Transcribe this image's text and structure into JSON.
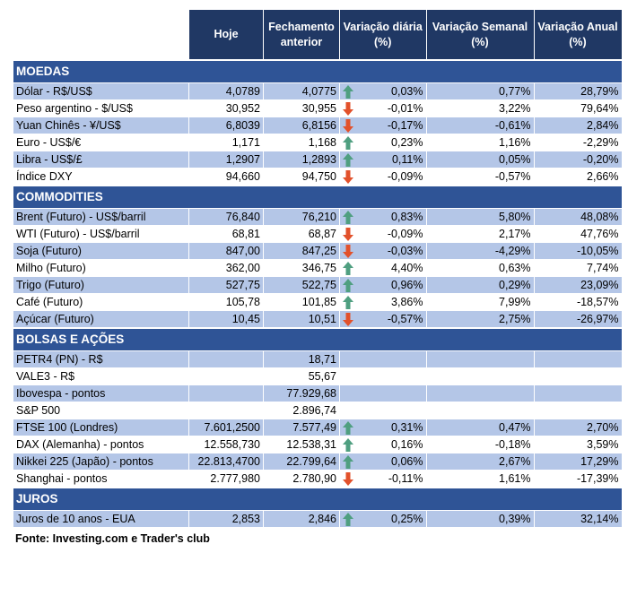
{
  "headers": {
    "hoje": "Hoje",
    "fech": "Fechamento anterior",
    "diaria": "Variação diária (%)",
    "semanal": "Variação Semanal (%)",
    "anual": "Variação Anual (%)"
  },
  "colors": {
    "header": "#203864",
    "section": "#2F5496",
    "row_alt": "#B4C6E7",
    "up": "#4f9f80",
    "down": "#e2512b"
  },
  "sections": [
    {
      "title": "MOEDAS",
      "rows": [
        {
          "name": "Dólar - R$/US$",
          "hoje": "4,0789",
          "fech": "4,0775",
          "dir": "up",
          "d": "0,03%",
          "s": "0,77%",
          "a": "28,79%"
        },
        {
          "name": "Peso argentino - $/US$",
          "hoje": "30,952",
          "fech": "30,955",
          "dir": "down",
          "d": "-0,01%",
          "s": "3,22%",
          "a": "79,64%"
        },
        {
          "name": "Yuan Chinês - ¥/US$",
          "hoje": "6,8039",
          "fech": "6,8156",
          "dir": "down",
          "d": "-0,17%",
          "s": "-0,61%",
          "a": "2,84%"
        },
        {
          "name": "Euro - US$/€",
          "hoje": "1,171",
          "fech": "1,168",
          "dir": "up",
          "d": "0,23%",
          "s": "1,16%",
          "a": "-2,29%"
        },
        {
          "name": "Libra - US$/£",
          "hoje": "1,2907",
          "fech": "1,2893",
          "dir": "up",
          "d": "0,11%",
          "s": "0,05%",
          "a": "-0,20%"
        },
        {
          "name": "Índice DXY",
          "hoje": "94,660",
          "fech": "94,750",
          "dir": "down",
          "d": "-0,09%",
          "s": "-0,57%",
          "a": "2,66%"
        }
      ]
    },
    {
      "title": "COMMODITIES",
      "rows": [
        {
          "name": "Brent (Futuro) - US$/barril",
          "hoje": "76,840",
          "fech": "76,210",
          "dir": "up",
          "d": "0,83%",
          "s": "5,80%",
          "a": "48,08%"
        },
        {
          "name": "WTI (Futuro) - US$/barril",
          "hoje": "68,81",
          "fech": "68,87",
          "dir": "down",
          "d": "-0,09%",
          "s": "2,17%",
          "a": "47,76%"
        },
        {
          "name": "Soja (Futuro)",
          "hoje": "847,00",
          "fech": "847,25",
          "dir": "down",
          "d": "-0,03%",
          "s": "-4,29%",
          "a": "-10,05%"
        },
        {
          "name": "Milho (Futuro)",
          "hoje": "362,00",
          "fech": "346,75",
          "dir": "up",
          "d": "4,40%",
          "s": "0,63%",
          "a": "7,74%"
        },
        {
          "name": "Trigo (Futuro)",
          "hoje": "527,75",
          "fech": "522,75",
          "dir": "up",
          "d": "0,96%",
          "s": "0,29%",
          "a": "23,09%"
        },
        {
          "name": "Café (Futuro)",
          "hoje": "105,78",
          "fech": "101,85",
          "dir": "up",
          "d": "3,86%",
          "s": "7,99%",
          "a": "-18,57%"
        },
        {
          "name": "Açúcar (Futuro)",
          "hoje": "10,45",
          "fech": "10,51",
          "dir": "down",
          "d": "-0,57%",
          "s": "2,75%",
          "a": "-26,97%"
        }
      ]
    },
    {
      "title": "BOLSAS E AÇÕES",
      "rows": [
        {
          "name": "PETR4 (PN) - R$",
          "hoje": "",
          "fech": "18,71",
          "dir": "",
          "d": "",
          "s": "",
          "a": ""
        },
        {
          "name": "VALE3 - R$",
          "hoje": "",
          "fech": "55,67",
          "dir": "",
          "d": "",
          "s": "",
          "a": ""
        },
        {
          "name": "Ibovespa - pontos",
          "hoje": "",
          "fech": "77.929,68",
          "dir": "",
          "d": "",
          "s": "",
          "a": ""
        },
        {
          "name": "S&P 500",
          "hoje": "",
          "fech": "2.896,74",
          "dir": "",
          "d": "",
          "s": "",
          "a": ""
        },
        {
          "name": "FTSE 100 (Londres)",
          "hoje": "7.601,2500",
          "fech": "7.577,49",
          "dir": "up",
          "d": "0,31%",
          "s": "0,47%",
          "a": "2,70%"
        },
        {
          "name": "DAX (Alemanha) - pontos",
          "hoje": "12.558,730",
          "fech": "12.538,31",
          "dir": "up",
          "d": "0,16%",
          "s": "-0,18%",
          "a": "3,59%"
        },
        {
          "name": "Nikkei 225 (Japão) - pontos",
          "hoje": "22.813,4700",
          "fech": "22.799,64",
          "dir": "up",
          "d": "0,06%",
          "s": "2,67%",
          "a": "17,29%"
        },
        {
          "name": "Shanghai - pontos",
          "hoje": "2.777,980",
          "fech": "2.780,90",
          "dir": "down",
          "d": "-0,11%",
          "s": "1,61%",
          "a": "-17,39%"
        }
      ]
    },
    {
      "title": "JUROS",
      "rows": [
        {
          "name": "Juros de 10 anos - EUA",
          "hoje": "2,853",
          "fech": "2,846",
          "dir": "up",
          "d": "0,25%",
          "s": "0,39%",
          "a": "32,14%"
        }
      ]
    }
  ],
  "fonte": {
    "label": "Fonte:",
    "text": "Investing.com e Trader's club"
  }
}
